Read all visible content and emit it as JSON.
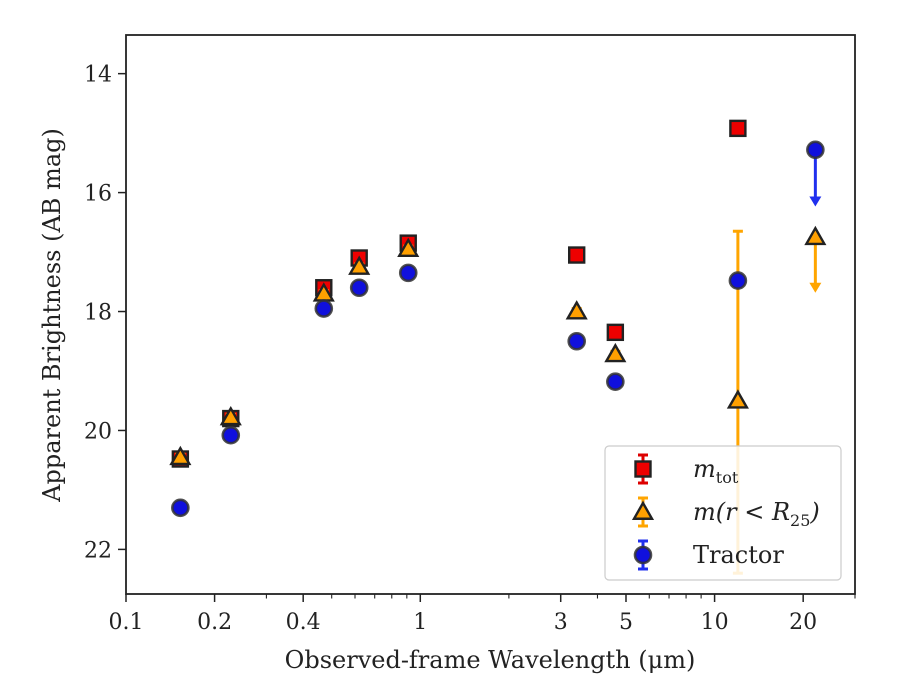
{
  "chart_data": {
    "type": "scatter",
    "xlabel": "Observed-frame Wavelength (μm)",
    "ylabel": "Apparent Brightness (AB mag)",
    "xscale": "log",
    "xlim": [
      0.1,
      30
    ],
    "ylim": [
      22.75,
      13.35
    ],
    "y_inverted": true,
    "x_ticks": [
      0.1,
      0.2,
      0.4,
      1,
      3,
      5,
      10,
      20
    ],
    "x_tick_labels": [
      "0.1",
      "0.2",
      "0.4",
      "1",
      "3",
      "5",
      "10",
      "20"
    ],
    "y_ticks": [
      14,
      16,
      18,
      20,
      22
    ],
    "y_tick_labels": [
      "14",
      "16",
      "18",
      "20",
      "22"
    ],
    "legend": {
      "position": "lower-right",
      "entries": [
        {
          "label": "m",
          "sub": "tot",
          "series": "mtot"
        },
        {
          "label": "m(r < R",
          "sub": "25",
          "suffix": ")",
          "series": "mr25"
        },
        {
          "label": "Tractor",
          "series": "tractor"
        }
      ]
    },
    "series": [
      {
        "key": "mtot",
        "marker": "square",
        "color": "#ee0000",
        "errcolor": "#dd0000",
        "points": [
          {
            "x": 0.153,
            "y": 20.48,
            "err": 0.05
          },
          {
            "x": 0.227,
            "y": 19.8,
            "err": 0.05
          },
          {
            "x": 0.47,
            "y": 17.6,
            "err": 0.05
          },
          {
            "x": 0.62,
            "y": 17.1,
            "err": 0.06
          },
          {
            "x": 0.91,
            "y": 16.85,
            "err": 0.06
          },
          {
            "x": 3.4,
            "y": 17.05,
            "err": 0.05
          },
          {
            "x": 4.6,
            "y": 18.35,
            "err": 0.05
          },
          {
            "x": 12.0,
            "y": 14.92,
            "err": 0.05
          }
        ]
      },
      {
        "key": "mr25",
        "marker": "triangle",
        "color": "#ffa000",
        "errcolor": "#ffa500",
        "points": [
          {
            "x": 0.153,
            "y": 20.45,
            "err": 0.05
          },
          {
            "x": 0.227,
            "y": 19.78,
            "err": 0.05
          },
          {
            "x": 0.47,
            "y": 17.7,
            "err": 0.05
          },
          {
            "x": 0.62,
            "y": 17.25,
            "err": 0.05
          },
          {
            "x": 0.91,
            "y": 16.95,
            "err": 0.05
          },
          {
            "x": 3.4,
            "y": 18.0,
            "err": 0.05
          },
          {
            "x": 4.6,
            "y": 18.72,
            "err": 0.05
          },
          {
            "x": 12.0,
            "y": 19.5,
            "err_low": 2.85,
            "err_high": 2.9
          },
          {
            "x": 22.0,
            "y": 16.75,
            "upper_limit": true,
            "arrow_to": 17.65
          }
        ]
      },
      {
        "key": "tractor",
        "marker": "circle",
        "color": "#1010dd",
        "errcolor": "#2030ee",
        "points": [
          {
            "x": 0.153,
            "y": 21.3,
            "err": 0.05
          },
          {
            "x": 0.227,
            "y": 20.08,
            "err": 0.05
          },
          {
            "x": 0.47,
            "y": 17.95,
            "err": 0.05
          },
          {
            "x": 0.62,
            "y": 17.6,
            "err": 0.05
          },
          {
            "x": 0.91,
            "y": 17.35,
            "err": 0.05
          },
          {
            "x": 3.4,
            "y": 18.5,
            "err": 0.05
          },
          {
            "x": 4.6,
            "y": 19.18,
            "err": 0.05
          },
          {
            "x": 12.0,
            "y": 17.48,
            "err": 0.05
          },
          {
            "x": 22.0,
            "y": 15.28,
            "upper_limit": true,
            "arrow_to": 16.2
          }
        ]
      }
    ]
  }
}
